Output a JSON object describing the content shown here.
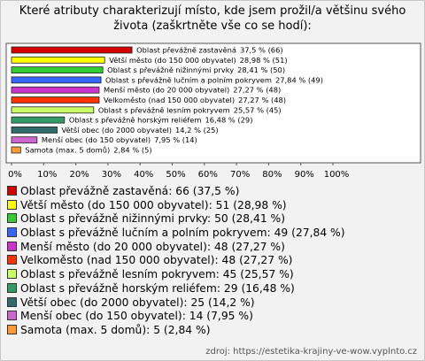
{
  "chart_data": {
    "type": "hbar",
    "title": "Které atributy charakterizují místo, kde jsem prožil/a většinu svého života (zaškrtněte vše co se hodí):",
    "categories": [
      "Oblast převážně zastavěná",
      "Větší město (do 150 000 obyvatel)",
      "Oblast s převážně nižinnými prvky",
      "Oblast s převážně lučním a polním pokryvem",
      "Menší město (do 20 000 obyvatel)",
      "Velkoměsto (nad 150 000 obyvatel)",
      "Oblast s převážně lesním pokryvem",
      "Oblast s převážně horským reliéfem",
      "Větší obec (do 2000 obyvatel)",
      "Menší obec (do 150 obyvatel)",
      "Samota (max. 5 domů)"
    ],
    "values": [
      37.5,
      28.98,
      28.41,
      27.84,
      27.27,
      27.27,
      25.57,
      16.48,
      14.2,
      7.95,
      2.84
    ],
    "value_labels": [
      "37,5 % (66)",
      "28,98 % (51)",
      "28,41 % (50)",
      "27,84 % (49)",
      "27,27 % (48)",
      "27,27 % (48)",
      "25,57 % (45)",
      "16,48 % (29)",
      "14,2 % (25)",
      "7,95 % (14)",
      "2,84 % (5)"
    ],
    "legend": [
      "Oblast převážně zastavěná: 66 (37,5 %)",
      "Větší město (do 150 000 obyvatel): 51 (28,98 %)",
      "Oblast s převážně nižinnými prvky: 50 (28,41 %)",
      "Oblast s převážně lučním a polním pokryvem: 49 (27,84 %)",
      "Menší město (do 20 000 obyvatel): 48 (27,27 %)",
      "Velkoměsto (nad 150 000 obyvatel): 48 (27,27 %)",
      "Oblast s převážně lesním pokryvem: 45 (25,57 %)",
      "Oblast s převážně horským reliéfem: 29 (16,48 %)",
      "Větší obec (do 2000 obyvatel): 25 (14,2 %)",
      "Menší obec (do 150 obyvatel): 14 (7,95 %)",
      "Samota (max. 5 domů): 5 (2,84 %)"
    ],
    "colors": [
      "#d40000",
      "#ffff00",
      "#33cc33",
      "#3366ff",
      "#cc33cc",
      "#ff3300",
      "#ccff66",
      "#339966",
      "#2f6b6b",
      "#cc66cc",
      "#ff9933"
    ],
    "xlim": [
      0,
      100
    ],
    "xticks": [
      {
        "value": 0,
        "label": "0%"
      },
      {
        "value": 10,
        "label": "10%"
      },
      {
        "value": 20,
        "label": "20%"
      },
      {
        "value": 30,
        "label": "30%"
      },
      {
        "value": 40,
        "label": "40%"
      },
      {
        "value": 50,
        "label": "50%"
      },
      {
        "value": 60,
        "label": "60%"
      },
      {
        "value": 70,
        "label": "70%"
      },
      {
        "value": 80,
        "label": "80%"
      },
      {
        "value": 90,
        "label": "90%"
      },
      {
        "value": 100,
        "label": "100%"
      }
    ],
    "source": "zdroj: https://estetika-krajiny-ve-wow.vyplnto.cz"
  }
}
